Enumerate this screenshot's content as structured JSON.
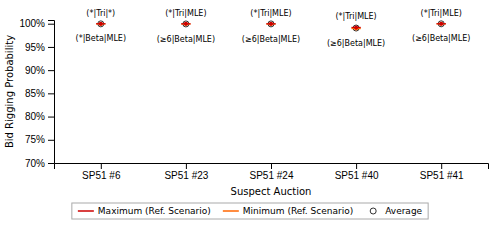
{
  "chart_data": {
    "type": "scatter",
    "categories": [
      "SP51 #6",
      "SP51 #23",
      "SP51 #24",
      "SP51 #40",
      "SP51 #41"
    ],
    "x_label": "Suspect Auction",
    "y_label": "Bid Rigging Probability",
    "ylim": [
      0.7,
      1.008
    ],
    "yticks": [
      {
        "value": 0.7,
        "label": "70%"
      },
      {
        "value": 0.75,
        "label": "75%"
      },
      {
        "value": 0.8,
        "label": "80%"
      },
      {
        "value": 0.85,
        "label": "85%"
      },
      {
        "value": 0.9,
        "label": "90%"
      },
      {
        "value": 0.95,
        "label": "95%"
      },
      {
        "value": 1.0,
        "label": "100%"
      }
    ],
    "grid": false,
    "legend": "bottom",
    "series": [
      {
        "name": "Maximum (Ref. Scenario)",
        "color": "#cc0000",
        "marker": "circle",
        "line_style": "solid",
        "values": [
          0.9999,
          0.9998,
          0.9998,
          0.992,
          0.9999
        ]
      },
      {
        "name": "Minimum (Ref. Scenario)",
        "color": "#ff6600",
        "marker": "circle",
        "line_style": "solid",
        "values": [
          0.9996,
          0.9993,
          0.9994,
          0.9895,
          0.9997
        ]
      },
      {
        "name": "Average",
        "color": "#000000",
        "marker": "open-circle",
        "values": [
          0.9997,
          0.9995,
          0.9996,
          0.9907,
          0.9998
        ]
      }
    ],
    "annotations_top": [
      "(*|Tri|*)",
      "(*|Tri|MLE)",
      "(*|Tri|MLE)",
      "(*|Tri|MLE)",
      "(*|Tri|MLE)"
    ],
    "annotations_bottom": [
      "(*|Beta|MLE)",
      "(≥6|Beta|MLE)",
      "(≥6|Beta|MLE)",
      "(≥6|Beta|MLE)",
      "(≥6|Beta|MLE)"
    ]
  }
}
